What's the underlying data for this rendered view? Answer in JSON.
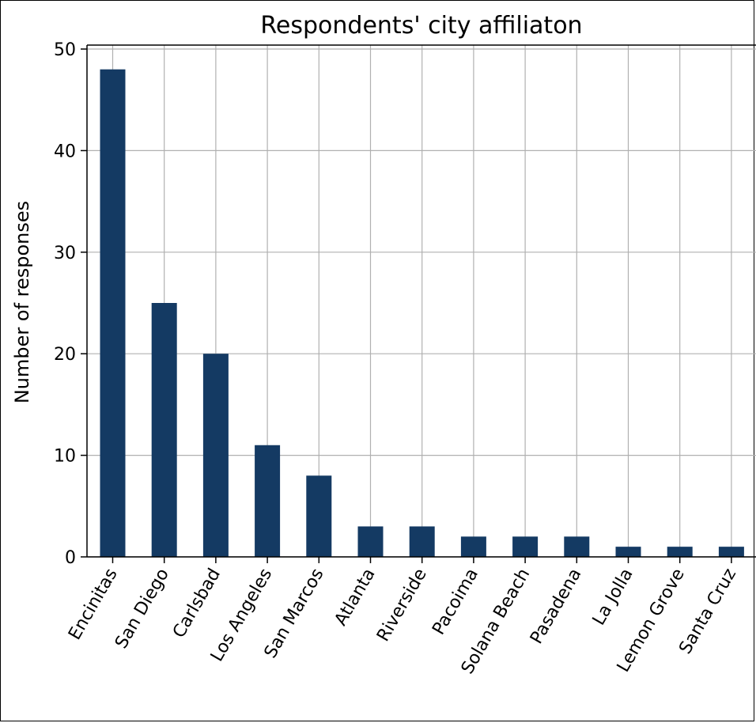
{
  "chart_data": {
    "type": "bar",
    "title": "Respondents' city affiliaton",
    "xlabel": "",
    "ylabel": "Number of responses",
    "categories": [
      "Encinitas",
      "San Diego",
      "Carlsbad",
      "Los Angeles",
      "San Marcos",
      "Atlanta",
      "Riverside",
      "Pacoima",
      "Solana Beach",
      "Pasadena",
      "La Jolla",
      "Lemon Grove",
      "Santa Cruz"
    ],
    "values": [
      48,
      25,
      20,
      11,
      8,
      3,
      3,
      2,
      2,
      2,
      1,
      1,
      1
    ],
    "ylim": [
      0,
      50
    ],
    "yticks": [
      0,
      10,
      20,
      30,
      40,
      50
    ],
    "grid": true,
    "bar_color": "#143a63"
  }
}
